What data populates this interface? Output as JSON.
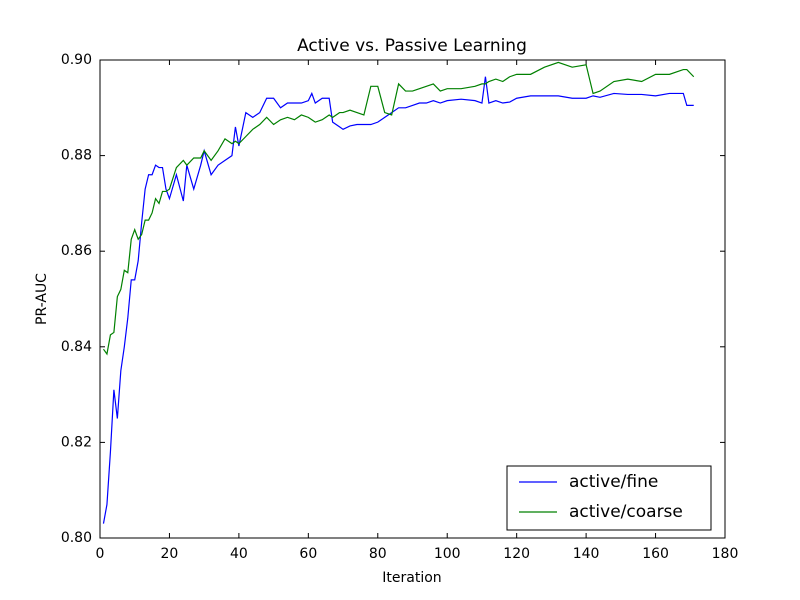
{
  "chart_data": {
    "type": "line",
    "title": "Active vs. Passive Learning",
    "x_label": "Iteration",
    "y_label": "PR-AUC",
    "x": [
      1,
      2,
      3,
      4,
      5,
      6,
      7,
      8,
      9,
      10,
      11,
      12,
      13,
      14,
      15,
      16,
      17,
      18,
      19,
      20,
      22,
      24,
      25,
      27,
      29,
      30,
      32,
      34,
      36,
      38,
      39,
      40,
      42,
      44,
      46,
      48,
      50,
      52,
      54,
      56,
      58,
      60,
      61,
      62,
      64,
      66,
      67,
      69,
      70,
      72,
      74,
      76,
      78,
      80,
      82,
      84,
      86,
      88,
      90,
      92,
      94,
      96,
      98,
      100,
      104,
      108,
      110,
      111,
      112,
      114,
      116,
      118,
      120,
      124,
      128,
      132,
      136,
      140,
      142,
      144,
      148,
      152,
      156,
      160,
      164,
      168,
      169,
      171
    ],
    "series": [
      {
        "name": "active/fine",
        "color": "#0000ff",
        "values": [
          0.803,
          0.807,
          0.818,
          0.831,
          0.825,
          0.835,
          0.84,
          0.846,
          0.854,
          0.854,
          0.858,
          0.866,
          0.873,
          0.876,
          0.876,
          0.878,
          0.8775,
          0.8775,
          0.873,
          0.871,
          0.876,
          0.8705,
          0.878,
          0.873,
          0.878,
          0.881,
          0.876,
          0.878,
          0.879,
          0.88,
          0.886,
          0.882,
          0.889,
          0.888,
          0.889,
          0.892,
          0.892,
          0.89,
          0.891,
          0.891,
          0.891,
          0.8915,
          0.893,
          0.891,
          0.892,
          0.892,
          0.887,
          0.886,
          0.8855,
          0.8862,
          0.8865,
          0.8865,
          0.8865,
          0.887,
          0.888,
          0.889,
          0.89,
          0.89,
          0.8905,
          0.891,
          0.891,
          0.8915,
          0.891,
          0.8915,
          0.8918,
          0.8915,
          0.891,
          0.8965,
          0.891,
          0.8915,
          0.891,
          0.8912,
          0.892,
          0.8925,
          0.8925,
          0.8925,
          0.892,
          0.892,
          0.8925,
          0.8922,
          0.893,
          0.8928,
          0.8928,
          0.8925,
          0.893,
          0.893,
          0.8905,
          0.8905
        ]
      },
      {
        "name": "active/coarse",
        "color": "#008000",
        "values": [
          0.8395,
          0.8385,
          0.8425,
          0.843,
          0.8505,
          0.852,
          0.856,
          0.8555,
          0.8625,
          0.8645,
          0.8625,
          0.8635,
          0.8665,
          0.8665,
          0.868,
          0.871,
          0.87,
          0.8725,
          0.8725,
          0.873,
          0.8775,
          0.879,
          0.878,
          0.8795,
          0.8795,
          0.881,
          0.879,
          0.881,
          0.8835,
          0.8825,
          0.883,
          0.8825,
          0.884,
          0.8855,
          0.8865,
          0.888,
          0.8865,
          0.8875,
          0.888,
          0.8875,
          0.8885,
          0.888,
          0.8875,
          0.887,
          0.8875,
          0.8885,
          0.888,
          0.889,
          0.889,
          0.8895,
          0.889,
          0.8885,
          0.8945,
          0.8945,
          0.889,
          0.8885,
          0.895,
          0.8935,
          0.8935,
          0.894,
          0.8945,
          0.895,
          0.8935,
          0.894,
          0.894,
          0.8945,
          0.895,
          0.895,
          0.8955,
          0.896,
          0.8955,
          0.8965,
          0.897,
          0.897,
          0.8985,
          0.8995,
          0.8985,
          0.899,
          0.893,
          0.8935,
          0.8955,
          0.896,
          0.8955,
          0.897,
          0.897,
          0.898,
          0.898,
          0.8965
        ]
      }
    ],
    "xlim": [
      0,
      180
    ],
    "xticks": [
      0,
      20,
      40,
      60,
      80,
      100,
      120,
      140,
      160,
      180
    ],
    "ylim": [
      0.8,
      0.9
    ],
    "yticks": [
      {
        "value": 0.8,
        "label": "0.80"
      },
      {
        "value": 0.82,
        "label": "0.82"
      },
      {
        "value": 0.84,
        "label": "0.84"
      },
      {
        "value": 0.86,
        "label": "0.86"
      },
      {
        "value": 0.88,
        "label": "0.88"
      },
      {
        "value": 0.9,
        "label": "0.90"
      }
    ],
    "legend_position": "lower right",
    "grid": false
  }
}
